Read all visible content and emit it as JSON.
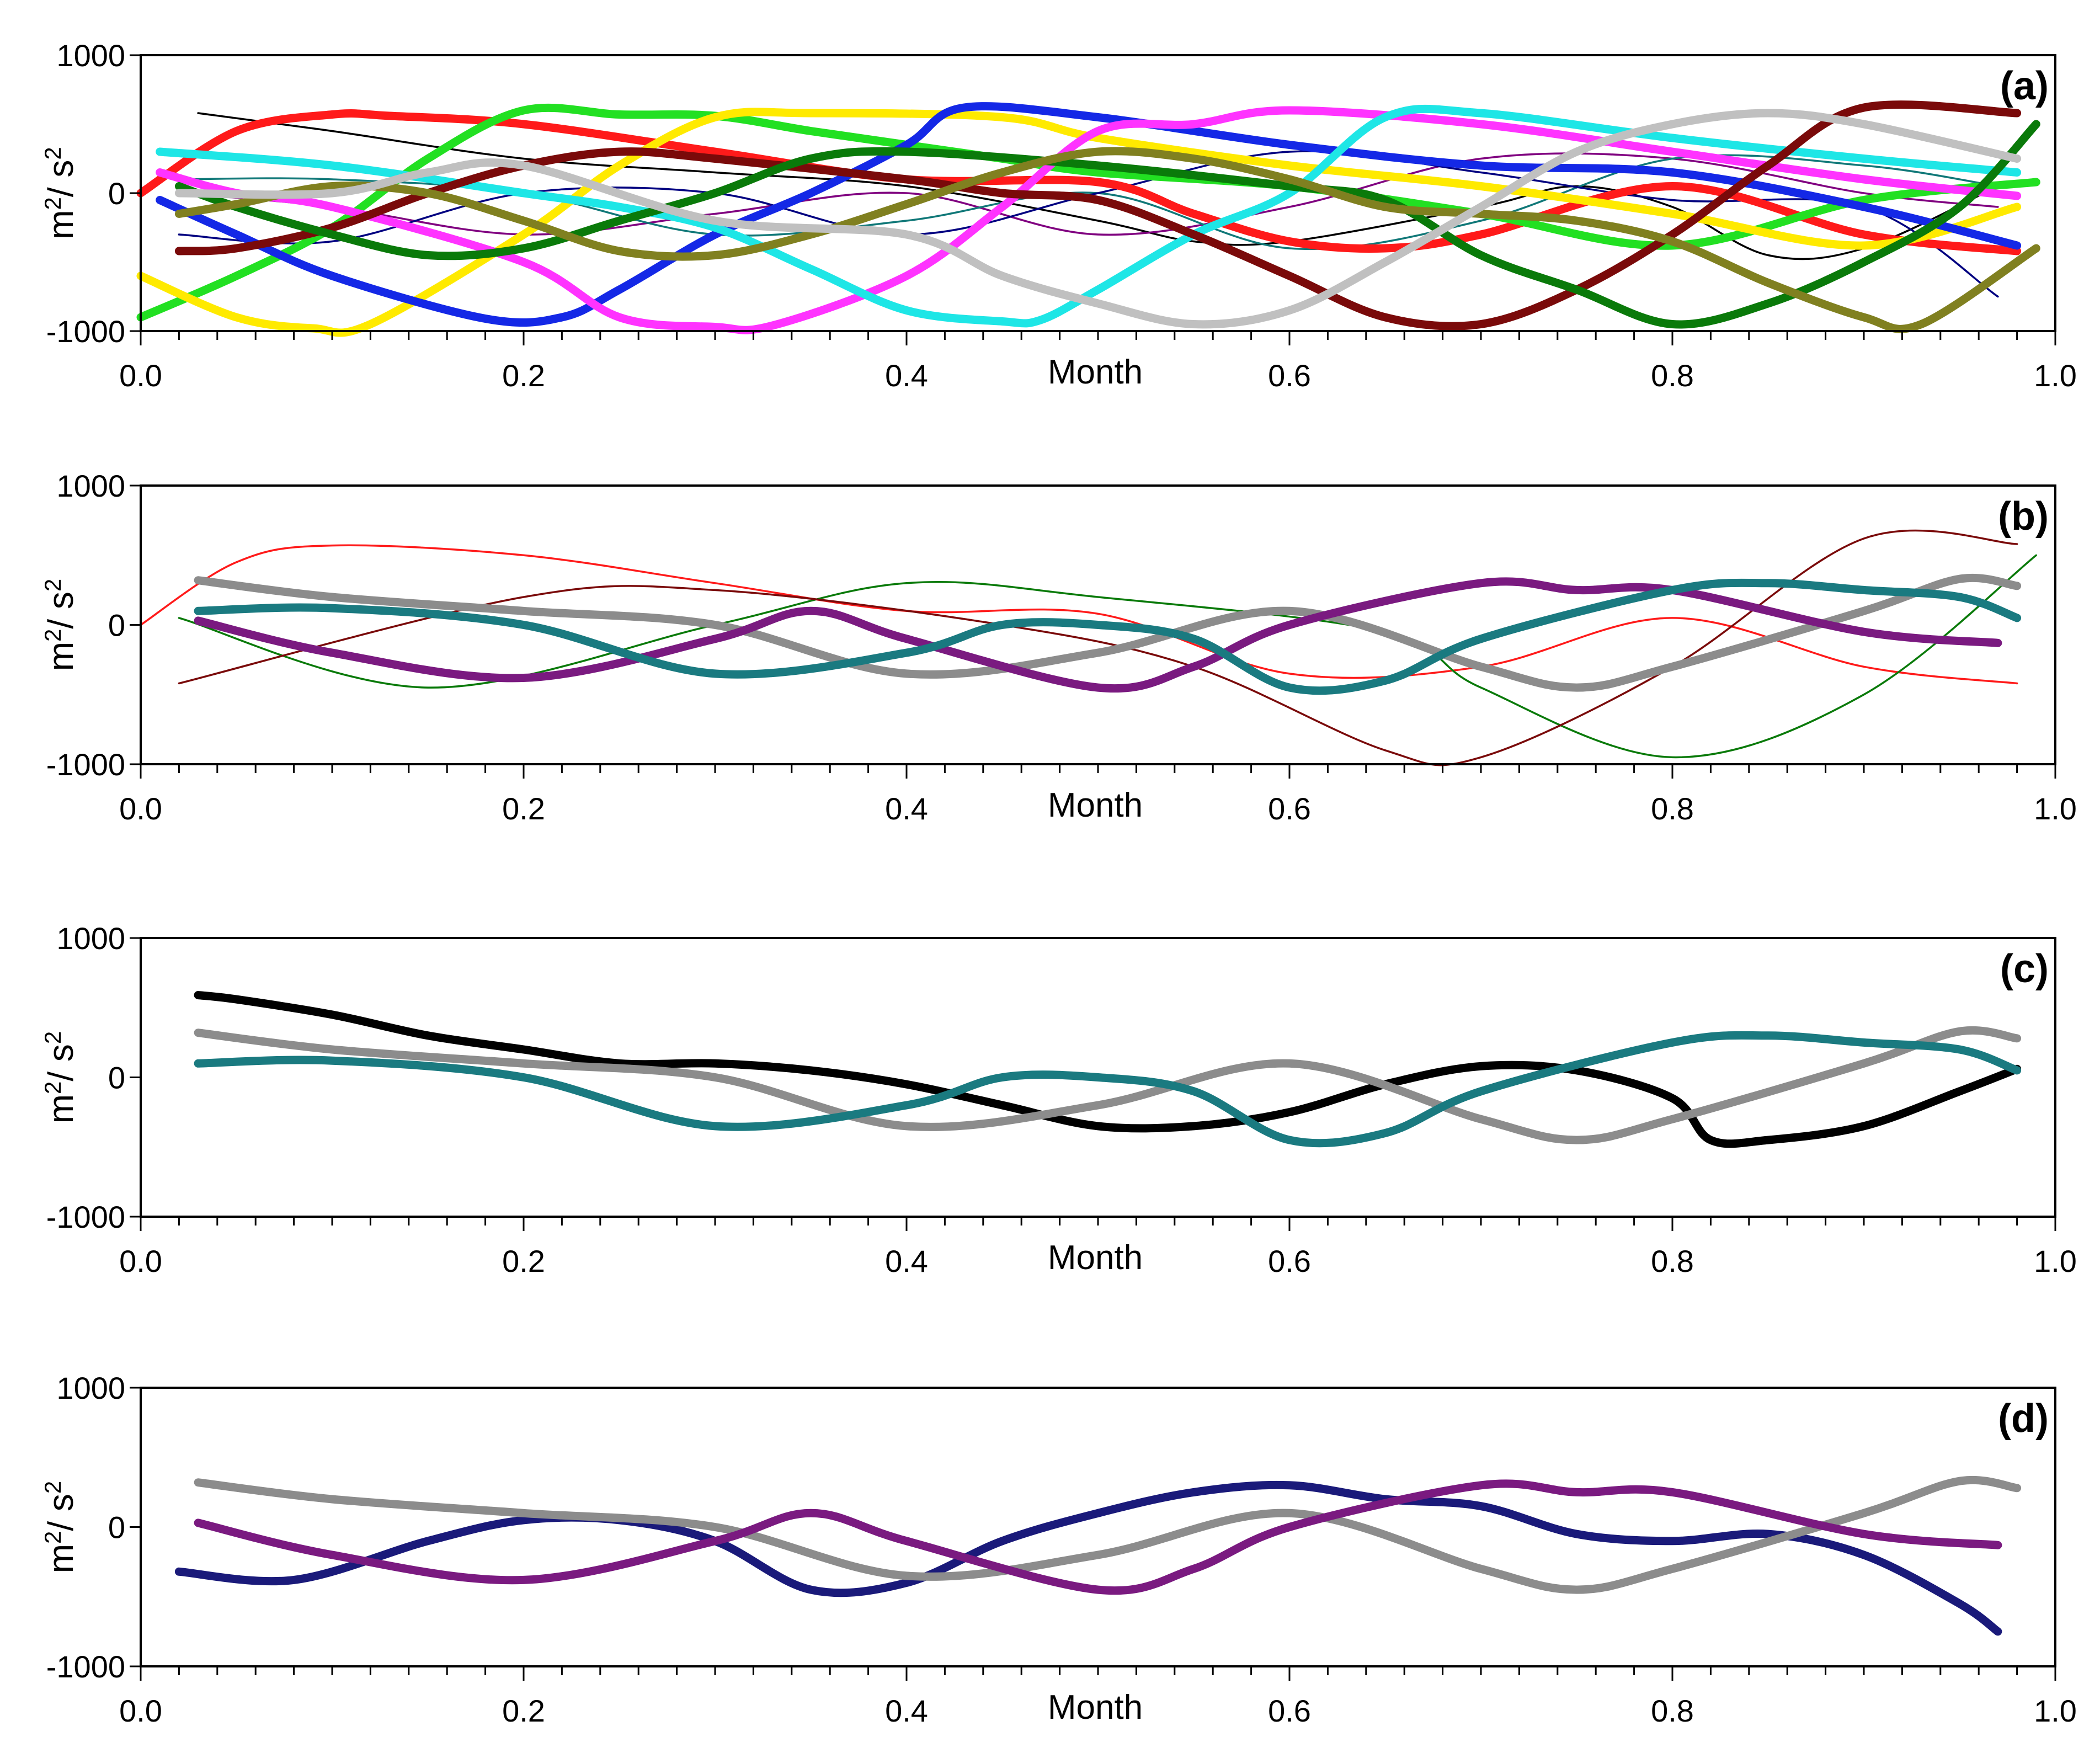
{
  "chart_data": [
    {
      "type": "line",
      "panel": "(a)",
      "xlabel": "Month",
      "ylabel": "m²/ s²",
      "xlim": [
        0.0,
        1.0
      ],
      "ylim": [
        -1000,
        1000
      ],
      "xticks": [
        "0.0",
        "0.2",
        "0.4",
        "0.6",
        "0.8",
        "1.0"
      ],
      "yticks": [
        "1000",
        "0",
        "-1000"
      ],
      "series": [
        {
          "name": "red",
          "color": "#ff1a1a",
          "style": "thick",
          "x": [
            0,
            0.05,
            0.1,
            0.13,
            0.2,
            0.3,
            0.4,
            0.5,
            0.55,
            0.6,
            0.65,
            0.7,
            0.8,
            0.9,
            0.98
          ],
          "values": [
            0,
            450,
            570,
            560,
            500,
            300,
            100,
            80,
            -150,
            -350,
            -400,
            -300,
            50,
            -300,
            -420
          ]
        },
        {
          "name": "lime",
          "color": "#22e022",
          "style": "thick",
          "x": [
            0,
            0.05,
            0.1,
            0.15,
            0.2,
            0.25,
            0.3,
            0.35,
            0.4,
            0.45,
            0.5,
            0.6,
            0.7,
            0.8,
            0.9,
            0.99
          ],
          "values": [
            -900,
            -600,
            -250,
            250,
            600,
            570,
            560,
            450,
            350,
            250,
            150,
            50,
            -150,
            -380,
            -50,
            80
          ]
        },
        {
          "name": "yellow",
          "color": "#ffea00",
          "style": "thick",
          "x": [
            0,
            0.05,
            0.09,
            0.12,
            0.2,
            0.25,
            0.3,
            0.35,
            0.45,
            0.5,
            0.6,
            0.7,
            0.8,
            0.9,
            0.98
          ],
          "values": [
            -600,
            -900,
            -980,
            -950,
            -300,
            200,
            550,
            580,
            550,
            400,
            200,
            50,
            -150,
            -380,
            -100
          ]
        },
        {
          "name": "blue",
          "color": "#1428e6",
          "style": "thick",
          "x": [
            0.01,
            0.05,
            0.1,
            0.18,
            0.22,
            0.25,
            0.3,
            0.35,
            0.4,
            0.43,
            0.5,
            0.6,
            0.7,
            0.8,
            0.9,
            0.98
          ],
          "values": [
            -50,
            -300,
            -600,
            -910,
            -900,
            -700,
            -300,
            0,
            350,
            620,
            550,
            350,
            200,
            150,
            -100,
            -380
          ]
        },
        {
          "name": "magenta",
          "color": "#ff33ff",
          "style": "thick",
          "x": [
            0.01,
            0.05,
            0.1,
            0.2,
            0.25,
            0.3,
            0.33,
            0.4,
            0.45,
            0.5,
            0.55,
            0.6,
            0.7,
            0.8,
            0.9,
            0.98
          ],
          "values": [
            150,
            0,
            -100,
            -500,
            -900,
            -970,
            -960,
            -600,
            -100,
            450,
            500,
            600,
            500,
            300,
            100,
            -20
          ]
        },
        {
          "name": "cyan",
          "color": "#1ee6e6",
          "style": "thick",
          "x": [
            0.01,
            0.1,
            0.2,
            0.25,
            0.3,
            0.35,
            0.4,
            0.45,
            0.47,
            0.5,
            0.55,
            0.6,
            0.65,
            0.7,
            0.8,
            0.9,
            0.98
          ],
          "values": [
            300,
            200,
            0,
            -100,
            -250,
            -550,
            -850,
            -930,
            -920,
            -700,
            -300,
            0,
            550,
            580,
            400,
            250,
            150
          ]
        },
        {
          "name": "darkred",
          "color": "#7a0a0a",
          "style": "thick",
          "x": [
            0.02,
            0.05,
            0.1,
            0.15,
            0.2,
            0.25,
            0.3,
            0.4,
            0.45,
            0.5,
            0.55,
            0.6,
            0.65,
            0.7,
            0.75,
            0.8,
            0.85,
            0.9,
            0.98
          ],
          "values": [
            -420,
            -400,
            -250,
            0,
            200,
            300,
            250,
            100,
            0,
            -50,
            -300,
            -600,
            -900,
            -950,
            -700,
            -300,
            200,
            620,
            580
          ]
        },
        {
          "name": "darkgreen",
          "color": "#0a7a0a",
          "style": "thick",
          "x": [
            0.02,
            0.05,
            0.1,
            0.15,
            0.2,
            0.25,
            0.3,
            0.35,
            0.4,
            0.5,
            0.6,
            0.65,
            0.7,
            0.75,
            0.8,
            0.85,
            0.9,
            0.95,
            0.99
          ],
          "values": [
            50,
            -100,
            -300,
            -450,
            -400,
            -200,
            0,
            250,
            300,
            200,
            50,
            -50,
            -450,
            -700,
            -950,
            -800,
            -500,
            -100,
            500
          ]
        },
        {
          "name": "olive",
          "color": "#808020",
          "style": "thick",
          "x": [
            0.02,
            0.05,
            0.1,
            0.15,
            0.2,
            0.25,
            0.3,
            0.35,
            0.4,
            0.45,
            0.5,
            0.55,
            0.6,
            0.65,
            0.7,
            0.75,
            0.8,
            0.85,
            0.9,
            0.93,
            0.99
          ],
          "values": [
            -150,
            -80,
            50,
            0,
            -200,
            -420,
            -450,
            -300,
            -80,
            150,
            300,
            250,
            100,
            -100,
            -150,
            -200,
            -350,
            -650,
            -900,
            -950,
            -400
          ]
        },
        {
          "name": "lightgray",
          "color": "#c0c0c0",
          "style": "thick",
          "x": [
            0.02,
            0.1,
            0.15,
            0.2,
            0.3,
            0.4,
            0.45,
            0.5,
            0.55,
            0.6,
            0.65,
            0.7,
            0.75,
            0.8,
            0.85,
            0.9,
            0.98
          ],
          "values": [
            0,
            0,
            150,
            200,
            -200,
            -300,
            -600,
            -800,
            -950,
            -850,
            -500,
            -100,
            300,
            500,
            580,
            500,
            250
          ]
        },
        {
          "name": "black",
          "color": "#000000",
          "style": "thin",
          "x": [
            0.03,
            0.1,
            0.2,
            0.3,
            0.4,
            0.5,
            0.55,
            0.6,
            0.7,
            0.75,
            0.8,
            0.85,
            0.9,
            0.97
          ],
          "values": [
            580,
            450,
            250,
            150,
            50,
            -200,
            -350,
            -350,
            -100,
            50,
            -100,
            -450,
            -400,
            50
          ]
        },
        {
          "name": "purple",
          "color": "#800080",
          "style": "thin",
          "x": [
            0.02,
            0.1,
            0.2,
            0.3,
            0.4,
            0.5,
            0.6,
            0.7,
            0.8,
            0.9,
            0.97
          ],
          "values": [
            0,
            -100,
            -300,
            -150,
            0,
            -300,
            -100,
            250,
            250,
            0,
            -100
          ]
        },
        {
          "name": "teal",
          "color": "#107878",
          "style": "thin",
          "x": [
            0.02,
            0.1,
            0.2,
            0.3,
            0.4,
            0.5,
            0.6,
            0.7,
            0.8,
            0.9,
            0.97
          ],
          "values": [
            100,
            100,
            0,
            -300,
            -200,
            0,
            -400,
            -200,
            250,
            200,
            50
          ]
        },
        {
          "name": "navy",
          "color": "#000080",
          "style": "thin",
          "x": [
            0.02,
            0.1,
            0.2,
            0.3,
            0.4,
            0.5,
            0.6,
            0.7,
            0.8,
            0.9,
            0.97
          ],
          "values": [
            -300,
            -350,
            0,
            0,
            -300,
            0,
            300,
            150,
            -50,
            -100,
            -750
          ]
        }
      ]
    },
    {
      "type": "line",
      "panel": "(b)",
      "xlabel": "Month",
      "ylabel": "m²/ s²",
      "xlim": [
        0.0,
        1.0
      ],
      "ylim": [
        -1000,
        1000
      ],
      "xticks": [
        "0.0",
        "0.2",
        "0.4",
        "0.6",
        "0.8",
        "1.0"
      ],
      "yticks": [
        "1000",
        "0",
        "-1000"
      ],
      "series": [
        {
          "name": "thick-gray",
          "color": "#8c8c8c",
          "style": "thick",
          "x": [
            0.03,
            0.1,
            0.2,
            0.3,
            0.4,
            0.5,
            0.6,
            0.7,
            0.75,
            0.8,
            0.9,
            0.95,
            0.98
          ],
          "values": [
            320,
            200,
            100,
            0,
            -350,
            -200,
            100,
            -300,
            -450,
            -300,
            100,
            330,
            280
          ]
        },
        {
          "name": "thick-purple",
          "color": "#7a1a80",
          "style": "thick",
          "x": [
            0.03,
            0.1,
            0.2,
            0.3,
            0.35,
            0.4,
            0.5,
            0.55,
            0.6,
            0.7,
            0.75,
            0.8,
            0.9,
            0.97
          ],
          "values": [
            30,
            -200,
            -380,
            -100,
            100,
            -100,
            -450,
            -300,
            0,
            300,
            250,
            250,
            -50,
            -130
          ]
        },
        {
          "name": "thick-teal",
          "color": "#1a7a80",
          "style": "thick",
          "x": [
            0.03,
            0.1,
            0.2,
            0.3,
            0.4,
            0.45,
            0.5,
            0.55,
            0.6,
            0.65,
            0.7,
            0.8,
            0.85,
            0.9,
            0.95,
            0.98
          ],
          "values": [
            100,
            120,
            0,
            -350,
            -200,
            0,
            0,
            -100,
            -450,
            -400,
            -100,
            250,
            300,
            250,
            200,
            50
          ]
        },
        {
          "name": "thin-red",
          "color": "#ff1a1a",
          "style": "thin",
          "x": [
            0,
            0.05,
            0.1,
            0.2,
            0.3,
            0.4,
            0.5,
            0.6,
            0.7,
            0.8,
            0.9,
            0.98
          ],
          "values": [
            0,
            450,
            570,
            500,
            300,
            100,
            80,
            -350,
            -300,
            50,
            -300,
            -420
          ]
        },
        {
          "name": "thin-darkgreen",
          "color": "#0a7a0a",
          "style": "thin",
          "x": [
            0.02,
            0.15,
            0.3,
            0.4,
            0.5,
            0.65,
            0.7,
            0.8,
            0.9,
            0.99
          ],
          "values": [
            50,
            -450,
            0,
            300,
            200,
            -50,
            -450,
            -950,
            -500,
            500
          ]
        },
        {
          "name": "thin-darkred",
          "color": "#7a0a0a",
          "style": "thin",
          "x": [
            0.02,
            0.2,
            0.3,
            0.45,
            0.55,
            0.65,
            0.7,
            0.8,
            0.9,
            0.98
          ],
          "values": [
            -420,
            200,
            250,
            0,
            -300,
            -900,
            -950,
            -300,
            620,
            580
          ]
        }
      ]
    },
    {
      "type": "line",
      "panel": "(c)",
      "xlabel": "Month",
      "ylabel": "m²/ s²",
      "xlim": [
        0.0,
        1.0
      ],
      "ylim": [
        -1000,
        1000
      ],
      "xticks": [
        "0.0",
        "0.2",
        "0.4",
        "0.6",
        "0.8",
        "1.0"
      ],
      "yticks": [
        "1000",
        "0",
        "-1000"
      ],
      "series": [
        {
          "name": "thick-black",
          "color": "#000000",
          "style": "thick",
          "x": [
            0.03,
            0.05,
            0.1,
            0.15,
            0.2,
            0.25,
            0.3,
            0.35,
            0.4,
            0.45,
            0.5,
            0.55,
            0.6,
            0.65,
            0.7,
            0.75,
            0.8,
            0.82,
            0.85,
            0.9,
            0.95,
            0.98
          ],
          "values": [
            590,
            560,
            450,
            300,
            200,
            100,
            100,
            50,
            -50,
            -200,
            -350,
            -350,
            -250,
            -50,
            80,
            50,
            -150,
            -450,
            -450,
            -350,
            -100,
            60
          ]
        },
        {
          "name": "thick-gray",
          "color": "#8c8c8c",
          "style": "thick",
          "x": [
            0.03,
            0.1,
            0.2,
            0.3,
            0.4,
            0.5,
            0.6,
            0.7,
            0.75,
            0.8,
            0.9,
            0.95,
            0.98
          ],
          "values": [
            320,
            200,
            100,
            0,
            -350,
            -200,
            100,
            -300,
            -450,
            -300,
            100,
            330,
            280
          ]
        },
        {
          "name": "thick-teal",
          "color": "#1a7a80",
          "style": "thick",
          "x": [
            0.03,
            0.1,
            0.2,
            0.3,
            0.4,
            0.45,
            0.5,
            0.55,
            0.6,
            0.65,
            0.7,
            0.8,
            0.85,
            0.9,
            0.95,
            0.98
          ],
          "values": [
            100,
            120,
            0,
            -350,
            -200,
            0,
            0,
            -100,
            -450,
            -400,
            -100,
            250,
            300,
            250,
            200,
            50
          ]
        }
      ]
    },
    {
      "type": "line",
      "panel": "(d)",
      "xlabel": "Month",
      "ylabel": "m²/ s²",
      "xlim": [
        0.0,
        1.0
      ],
      "ylim": [
        -1000,
        1000
      ],
      "xticks": [
        "0.0",
        "0.2",
        "0.4",
        "0.6",
        "0.8",
        "1.0"
      ],
      "yticks": [
        "1000",
        "0",
        "-1000"
      ],
      "series": [
        {
          "name": "thick-navy",
          "color": "#1a1a7a",
          "style": "thick",
          "x": [
            0.02,
            0.08,
            0.15,
            0.2,
            0.25,
            0.3,
            0.35,
            0.4,
            0.45,
            0.5,
            0.55,
            0.6,
            0.65,
            0.7,
            0.75,
            0.8,
            0.85,
            0.9,
            0.95,
            0.97
          ],
          "values": [
            -320,
            -380,
            -100,
            50,
            50,
            -100,
            -450,
            -400,
            -100,
            100,
            250,
            300,
            200,
            150,
            -50,
            -100,
            -50,
            -200,
            -550,
            -750
          ]
        },
        {
          "name": "thick-gray",
          "color": "#8c8c8c",
          "style": "thick",
          "x": [
            0.03,
            0.1,
            0.2,
            0.3,
            0.4,
            0.5,
            0.6,
            0.7,
            0.75,
            0.8,
            0.9,
            0.95,
            0.98
          ],
          "values": [
            320,
            200,
            100,
            0,
            -350,
            -200,
            100,
            -300,
            -450,
            -300,
            100,
            330,
            280
          ]
        },
        {
          "name": "thick-purple",
          "color": "#7a1a80",
          "style": "thick",
          "x": [
            0.03,
            0.1,
            0.2,
            0.3,
            0.35,
            0.4,
            0.5,
            0.55,
            0.6,
            0.7,
            0.75,
            0.8,
            0.9,
            0.97
          ],
          "values": [
            30,
            -200,
            -380,
            -100,
            100,
            -100,
            -450,
            -300,
            0,
            300,
            250,
            250,
            -50,
            -130
          ]
        }
      ]
    }
  ]
}
